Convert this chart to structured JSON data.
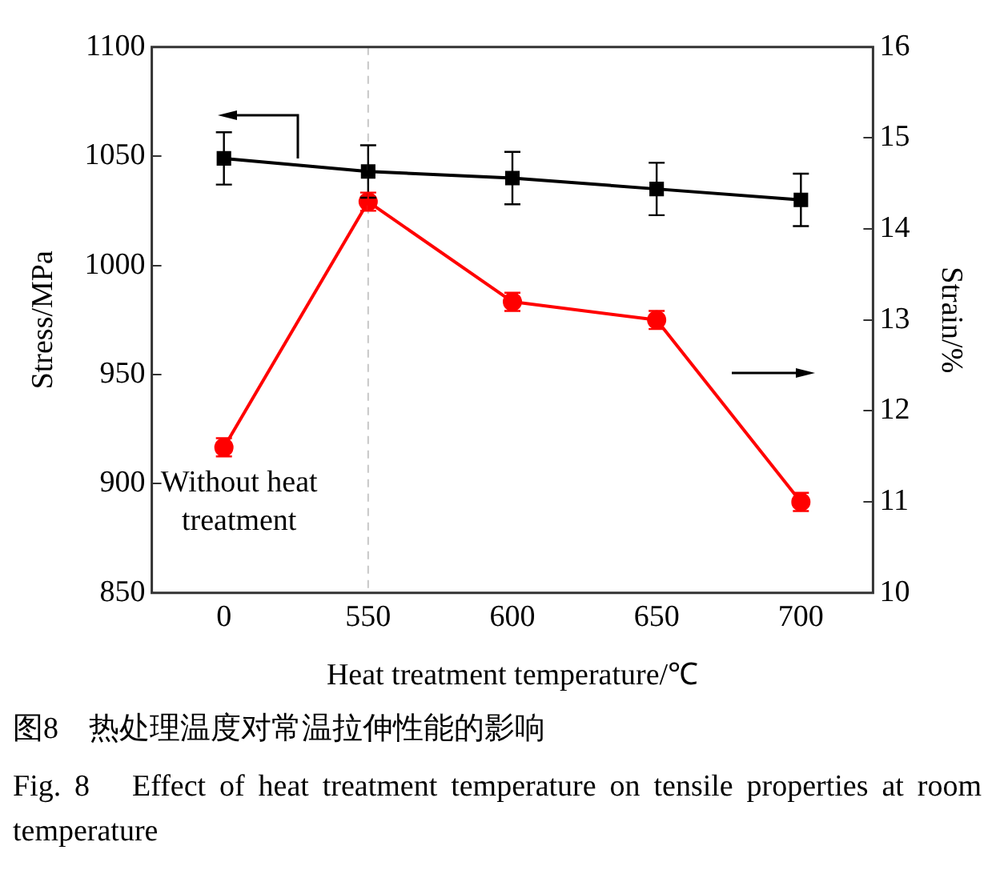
{
  "chart_data": {
    "type": "line",
    "xlabel": "Heat treatment temperature/℃",
    "ylabel": "Stress/MPa",
    "y2label": "Strain/%",
    "categories": [
      "0",
      "550",
      "600",
      "650",
      "700"
    ],
    "series": [
      {
        "color": "#000000",
        "values": [
          1049,
          1043,
          1040,
          1035,
          1030
        ],
        "errors": [
          12,
          12,
          12,
          12,
          12
        ],
        "marker": "square"
      },
      {
        "color": "#ff0000",
        "values": [
          11.6,
          14.3,
          13.2,
          13.0,
          11.0
        ],
        "errors": [
          0.1,
          0.1,
          0.1,
          0.1,
          0.1
        ],
        "marker": "circle",
        "axis": "y2"
      }
    ],
    "ylim": [
      850,
      1100
    ],
    "yticks": [
      850,
      900,
      950,
      1000,
      1050,
      1100
    ],
    "y2lim": [
      10,
      16
    ],
    "y2ticks": [
      10,
      11,
      12,
      13,
      14,
      15,
      16
    ],
    "ref_lines": [
      {
        "axis": "x",
        "value": "550",
        "color": "#c8c8c8",
        "line_style": "dashed"
      }
    ],
    "grid": false,
    "legend": false,
    "line_style": "solid",
    "annotations": [
      "Without heat treatment",
      "图8　热处理温度对常温拉伸性能的影响",
      "Fig. 8　Effect of heat treatment temperature on tensile properties at room temperature"
    ]
  }
}
